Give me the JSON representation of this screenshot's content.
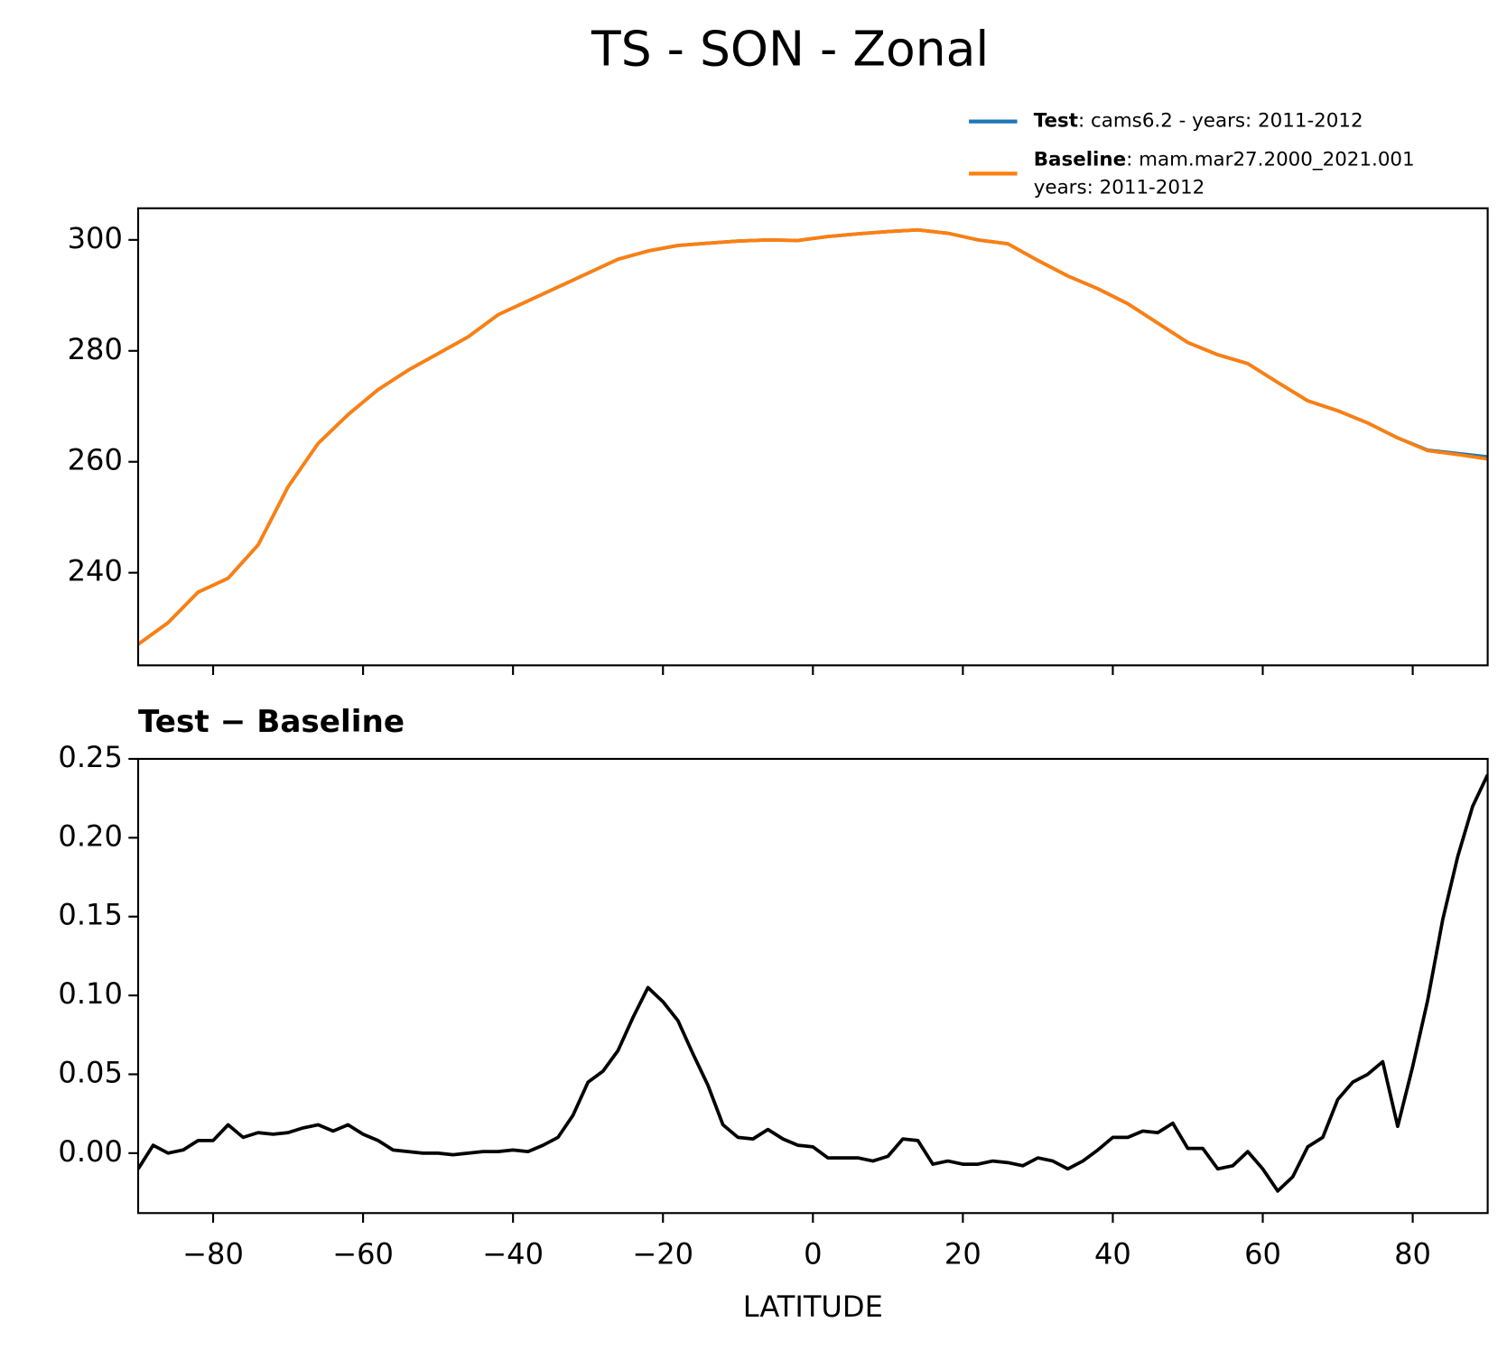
{
  "title": "TS - SON - Zonal",
  "chart_data": [
    {
      "type": "line",
      "x": [
        -90,
        -86,
        -82,
        -78,
        -74,
        -70,
        -66,
        -62,
        -58,
        -54,
        -50,
        -46,
        -42,
        -38,
        -34,
        -30,
        -26,
        -22,
        -18,
        -14,
        -10,
        -6,
        -2,
        2,
        6,
        10,
        14,
        18,
        22,
        26,
        30,
        34,
        38,
        42,
        46,
        50,
        54,
        58,
        62,
        66,
        70,
        74,
        78,
        82,
        86,
        90
      ],
      "series": [
        {
          "name": "Test",
          "description": [
            ": cams6.2 - years: 2011-2012"
          ],
          "color": "#1f77b4",
          "values": [
            227.1,
            231,
            236.5,
            239,
            245,
            255.5,
            263.3,
            268.5,
            273,
            276.5,
            279.5,
            282.5,
            286.5,
            289,
            291.5,
            294,
            296.5,
            298,
            299,
            299.4,
            299.8,
            300,
            299.9,
            300.6,
            301.1,
            301.5,
            301.8,
            301.2,
            300,
            299.3,
            296.3,
            293.5,
            291.2,
            288.5,
            285,
            281.5,
            279.3,
            277.7,
            274.3,
            271,
            269.2,
            267,
            264.3,
            262.1,
            261.5,
            260.9
          ]
        },
        {
          "name": "Baseline",
          "description": [
            ": mam.mar27.2000_2021.001",
            "years: 2011-2012"
          ],
          "color": "#ff7f0e",
          "values": [
            227.1,
            231,
            236.5,
            239,
            245,
            255.5,
            263.3,
            268.5,
            273,
            276.5,
            279.5,
            282.5,
            286.5,
            289,
            291.5,
            294,
            296.5,
            298,
            299,
            299.4,
            299.8,
            300,
            299.9,
            300.6,
            301.1,
            301.5,
            301.8,
            301.2,
            300,
            299.3,
            296.3,
            293.5,
            291.2,
            288.5,
            285,
            281.5,
            279.3,
            277.7,
            274.3,
            271,
            269.2,
            267,
            264.3,
            262,
            261.3,
            260.5
          ]
        }
      ],
      "xlim": [
        -90,
        90
      ],
      "xticks": [
        {
          "value": -80,
          "label": "−80"
        },
        {
          "value": -60,
          "label": "−60"
        },
        {
          "value": -40,
          "label": "−40"
        },
        {
          "value": -20,
          "label": "−20"
        },
        0,
        20,
        40,
        60,
        80
      ],
      "ylim": [
        223.3,
        305.7
      ],
      "yticks": [
        240,
        260,
        280,
        300
      ],
      "grid": false,
      "legend": "above-right"
    },
    {
      "type": "line",
      "title": "Test − Baseline",
      "xlabel": "LATITUDE",
      "x": [
        -90,
        -88,
        -86,
        -84,
        -82,
        -80,
        -78,
        -76,
        -74,
        -72,
        -70,
        -68,
        -66,
        -64,
        -62,
        -60,
        -58,
        -56,
        -54,
        -52,
        -50,
        -48,
        -46,
        -44,
        -42,
        -40,
        -38,
        -36,
        -34,
        -32,
        -30,
        -28,
        -26,
        -24,
        -22,
        -20,
        -18,
        -16,
        -14,
        -12,
        -10,
        -8,
        -6,
        -4,
        -2,
        0,
        2,
        4,
        6,
        8,
        10,
        12,
        14,
        16,
        18,
        20,
        22,
        24,
        26,
        28,
        30,
        32,
        34,
        36,
        38,
        40,
        42,
        44,
        46,
        48,
        50,
        52,
        54,
        56,
        58,
        60,
        62,
        64,
        66,
        68,
        70,
        72,
        74,
        76,
        78,
        80,
        82,
        84,
        86,
        88,
        90
      ],
      "series": [
        {
          "color": "#000000",
          "values": [
            -0.01,
            0.005,
            0.0,
            0.002,
            0.008,
            0.008,
            0.018,
            0.01,
            0.013,
            0.012,
            0.013,
            0.016,
            0.018,
            0.014,
            0.018,
            0.012,
            0.008,
            0.002,
            0.001,
            0.0,
            0.0,
            -0.001,
            0.0,
            0.001,
            0.001,
            0.002,
            0.001,
            0.005,
            0.01,
            0.024,
            0.045,
            0.052,
            0.065,
            0.086,
            0.105,
            0.096,
            0.084,
            0.063,
            0.043,
            0.018,
            0.01,
            0.009,
            0.015,
            0.009,
            0.005,
            0.004,
            -0.003,
            -0.003,
            -0.003,
            -0.005,
            -0.002,
            0.009,
            0.008,
            -0.007,
            -0.005,
            -0.007,
            -0.007,
            -0.005,
            -0.006,
            -0.008,
            -0.003,
            -0.005,
            -0.01,
            -0.005,
            0.002,
            0.01,
            0.01,
            0.014,
            0.013,
            0.019,
            0.003,
            0.003,
            -0.01,
            -0.008,
            0.001,
            -0.01,
            -0.024,
            -0.015,
            0.004,
            0.01,
            0.034,
            0.045,
            0.05,
            0.058,
            0.017,
            0.055,
            0.097,
            0.148,
            0.188,
            0.22,
            0.24
          ]
        }
      ],
      "xlim": [
        -90,
        90
      ],
      "xticks": [
        {
          "value": -80,
          "label": "−80"
        },
        {
          "value": -60,
          "label": "−60"
        },
        {
          "value": -40,
          "label": "−40"
        },
        {
          "value": -20,
          "label": "−20"
        },
        0,
        20,
        40,
        60,
        80
      ],
      "ylim": [
        -0.038,
        0.25
      ],
      "yticks": [
        {
          "value": 0,
          "label": "0.00"
        },
        0.05,
        {
          "value": 0.1,
          "label": "0.10"
        },
        0.15,
        {
          "value": 0.2,
          "label": "0.20"
        },
        0.25
      ],
      "grid": false
    }
  ]
}
